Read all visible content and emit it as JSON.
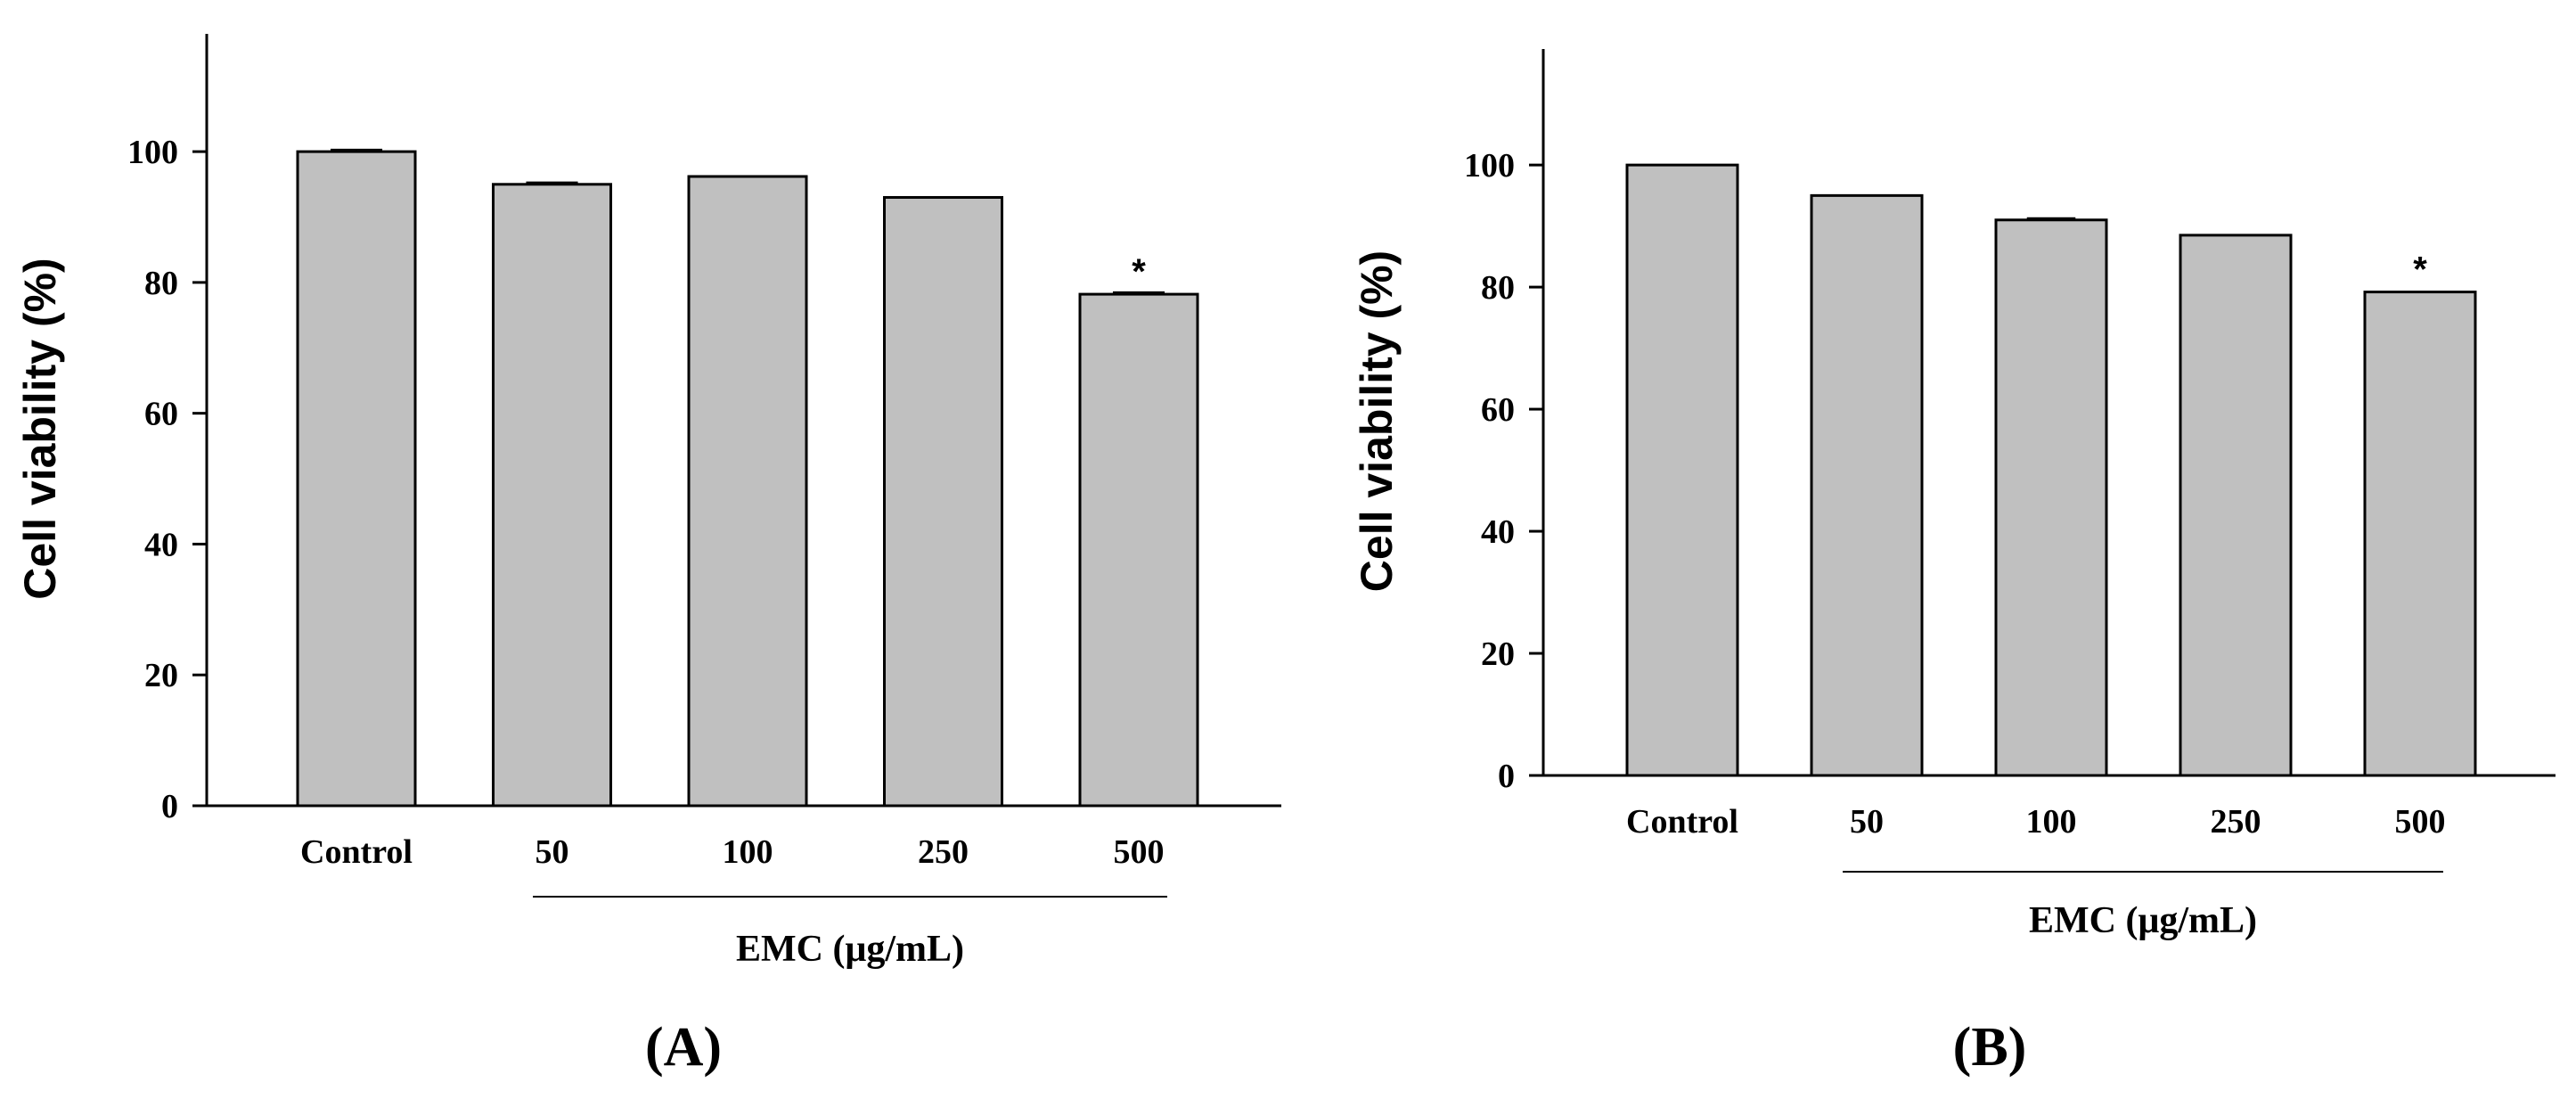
{
  "chart_data": [
    {
      "type": "bar",
      "panel_label": "(A)",
      "ylabel": "Cell viability (%)",
      "xlabel": "",
      "group_label": "EMC (μg/mL)",
      "categories": [
        "Control",
        "50",
        "100",
        "250",
        "500"
      ],
      "values": [
        100,
        95,
        96.2,
        93,
        78.2
      ],
      "errors": [
        0.3,
        0.3,
        0,
        0,
        0.3
      ],
      "annotations": [
        "",
        "",
        "",
        "",
        "*"
      ],
      "yticks": [
        0,
        20,
        40,
        60,
        80,
        100
      ],
      "ylim": [
        0,
        118
      ],
      "bar_color": "#c0c0c0",
      "grid": false
    },
    {
      "type": "bar",
      "panel_label": "(B)",
      "ylabel": "Cell viability (%)",
      "xlabel": "",
      "group_label": "EMC (μg/mL)",
      "categories": [
        "Control",
        "50",
        "100",
        "250",
        "500"
      ],
      "values": [
        100,
        95,
        91,
        88.5,
        79.2
      ],
      "errors": [
        0,
        0,
        0.3,
        0,
        0
      ],
      "annotations": [
        "",
        "",
        "",
        "",
        "*"
      ],
      "yticks": [
        0,
        20,
        40,
        60,
        80,
        100
      ],
      "ylim": [
        0,
        119
      ],
      "bar_color": "#c0c0c0",
      "grid": false
    }
  ]
}
